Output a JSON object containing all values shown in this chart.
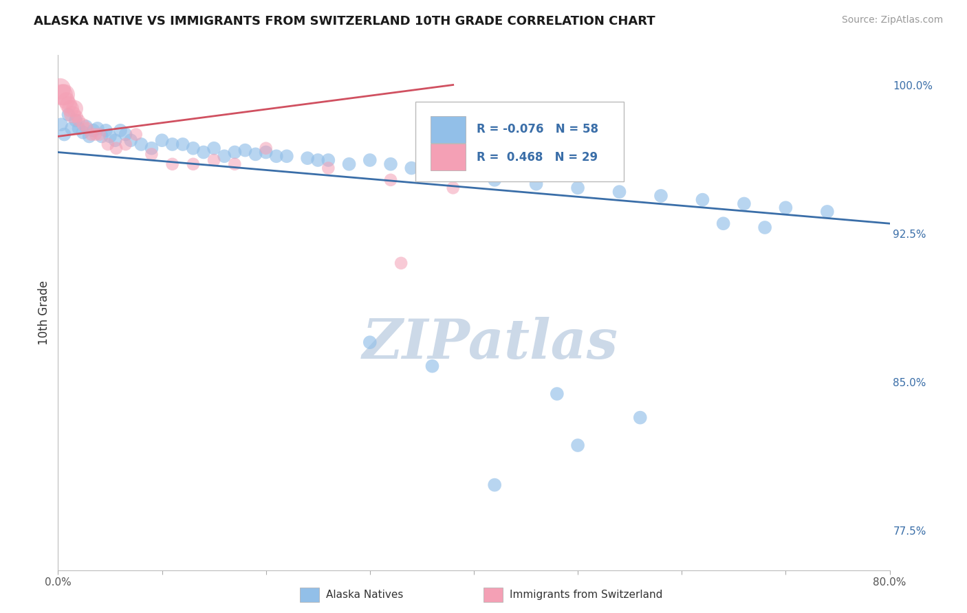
{
  "title": "ALASKA NATIVE VS IMMIGRANTS FROM SWITZERLAND 10TH GRADE CORRELATION CHART",
  "source_text": "Source: ZipAtlas.com",
  "ylabel": "10th Grade",
  "xlim": [
    0.0,
    0.8
  ],
  "ylim": [
    0.755,
    1.015
  ],
  "yticks_right": [
    1.0,
    0.925,
    0.85,
    0.775
  ],
  "yticklabels_right": [
    "100.0%",
    "92.5%",
    "85.0%",
    "77.5%"
  ],
  "grid_color": "#c8c8c8",
  "background_color": "#ffffff",
  "watermark_text": "ZIPatlas",
  "watermark_color": "#ccd9e8",
  "blue_color": "#92bfe8",
  "pink_color": "#f4a0b5",
  "blue_line_color": "#3a6ea8",
  "pink_line_color": "#d05060",
  "legend_R_blue": "-0.076",
  "legend_N_blue": "58",
  "legend_R_pink": "0.468",
  "legend_N_pink": "29",
  "legend_text_color": "#3a6ea8",
  "blue_scatter_x": [
    0.003,
    0.006,
    0.01,
    0.013,
    0.017,
    0.02,
    0.024,
    0.027,
    0.03,
    0.034,
    0.038,
    0.042,
    0.046,
    0.05,
    0.055,
    0.06,
    0.065,
    0.07,
    0.08,
    0.09,
    0.1,
    0.11,
    0.12,
    0.13,
    0.14,
    0.16,
    0.18,
    0.2,
    0.22,
    0.25,
    0.28,
    0.15,
    0.17,
    0.19,
    0.21,
    0.24,
    0.26,
    0.3,
    0.32,
    0.34,
    0.38,
    0.42,
    0.46,
    0.5,
    0.54,
    0.58,
    0.62,
    0.66,
    0.7,
    0.74,
    0.5,
    0.42,
    0.3,
    0.36,
    0.48,
    0.56,
    0.64,
    0.68
  ],
  "blue_scatter_y": [
    0.98,
    0.975,
    0.985,
    0.978,
    0.982,
    0.978,
    0.976,
    0.979,
    0.974,
    0.977,
    0.978,
    0.974,
    0.977,
    0.974,
    0.972,
    0.977,
    0.975,
    0.972,
    0.97,
    0.968,
    0.972,
    0.97,
    0.97,
    0.968,
    0.966,
    0.964,
    0.967,
    0.966,
    0.964,
    0.962,
    0.96,
    0.968,
    0.966,
    0.965,
    0.964,
    0.963,
    0.962,
    0.962,
    0.96,
    0.958,
    0.955,
    0.952,
    0.95,
    0.948,
    0.946,
    0.944,
    0.942,
    0.94,
    0.938,
    0.936,
    0.818,
    0.798,
    0.87,
    0.858,
    0.844,
    0.832,
    0.93,
    0.928
  ],
  "pink_scatter_x": [
    0.002,
    0.004,
    0.006,
    0.008,
    0.01,
    0.012,
    0.014,
    0.016,
    0.018,
    0.02,
    0.024,
    0.028,
    0.032,
    0.036,
    0.04,
    0.048,
    0.056,
    0.065,
    0.075,
    0.09,
    0.11,
    0.13,
    0.15,
    0.17,
    0.2,
    0.26,
    0.32,
    0.38,
    0.33
  ],
  "pink_scatter_y": [
    0.998,
    0.995,
    0.995,
    0.992,
    0.99,
    0.988,
    0.985,
    0.988,
    0.984,
    0.982,
    0.98,
    0.978,
    0.975,
    0.975,
    0.975,
    0.97,
    0.968,
    0.97,
    0.975,
    0.965,
    0.96,
    0.96,
    0.962,
    0.96,
    0.968,
    0.958,
    0.952,
    0.948,
    0.91
  ],
  "blue_scatter_size": 200,
  "pink_scatter_size_small": 180,
  "pink_scatter_size_large": 500
}
